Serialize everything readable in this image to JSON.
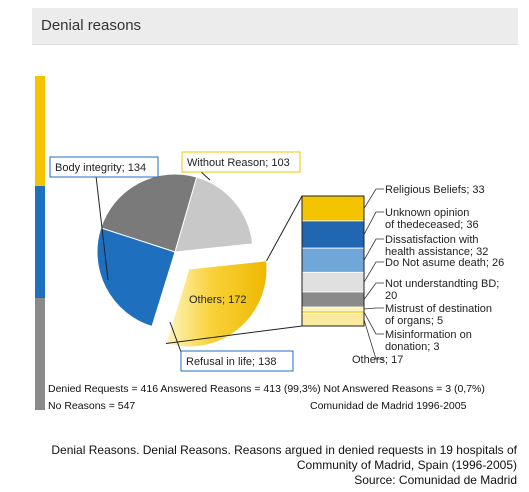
{
  "header": {
    "title": "Denial reasons"
  },
  "colors": {
    "yellow": "#f5c400",
    "blue": "#1f6fbf",
    "gray": "#7a7a7a",
    "light_gray": "#c8c8c8"
  },
  "chart_data": {
    "type": "pie",
    "title": "",
    "slices": [
      {
        "label": "Body integrity; 134",
        "name": "Body integrity",
        "value": 134,
        "color": "#7a7a7a"
      },
      {
        "label": "Without Reason; 103",
        "name": "Without Reason",
        "value": 103,
        "color": "#c8c8c8"
      },
      {
        "label": "Others; 172",
        "name": "Others",
        "value": 172,
        "color": "#f5c400",
        "exploded": true
      },
      {
        "label": "Refusal in life; 138",
        "name": "Refusal in life",
        "value": 138,
        "color": "#1f6fbf"
      }
    ],
    "breakdown": {
      "parent": "Others",
      "items": [
        {
          "label": "Religious Beliefs; 33",
          "lines": [
            "Religious Beliefs; 33"
          ],
          "value": 33,
          "color": "#f5c400"
        },
        {
          "label": "Unknown opinion of thedeceased; 36",
          "lines": [
            "Unknown opinion",
            "of thedeceased; 36"
          ],
          "value": 36,
          "color": "#2066b0"
        },
        {
          "label": "Dissatisfaction with health assistance; 32",
          "lines": [
            "Dissatisfaction with",
            "health assistance; 32"
          ],
          "value": 32,
          "color": "#6fa8d8"
        },
        {
          "label": "Do Not asume death; 26",
          "lines": [
            "Do Not asume death; 26"
          ],
          "value": 26,
          "color": "#e0e0e0"
        },
        {
          "label": "Not understandting BD; 20",
          "lines": [
            "Not understandting BD;",
            "20"
          ],
          "value": 20,
          "color": "#8a8a8a"
        },
        {
          "label": "Mistrust of destination of organs; 5",
          "lines": [
            "Mistrust of destination",
            "of organs; 5"
          ],
          "value": 5,
          "color": "#fff3b0"
        },
        {
          "label": "Misinformation on donation; 3",
          "lines": [
            "Misinformation on",
            "donation; 3"
          ],
          "value": 3,
          "color": "#f5c400"
        },
        {
          "label": "Others; 17",
          "lines": [
            "Others; 17"
          ],
          "value": 17,
          "color": "#fbe9a0"
        }
      ]
    }
  },
  "footer": {
    "line1": "Denied Requests = 416 Answered Reasons = 413 (99,3%) Not Answered Reasons = 3 (0,7%)",
    "line2_left": "No Reasons = 547",
    "line2_right": "Comunidad de Madrid 1996-2005"
  },
  "caption": {
    "line1": "Denial Reasons. Denial Reasons. Reasons argued in denied requests in 19 hospitals of",
    "line2": "Community of Madrid, Spain (1996-2005)",
    "line3": "Source: Comunidad de Madrid"
  }
}
